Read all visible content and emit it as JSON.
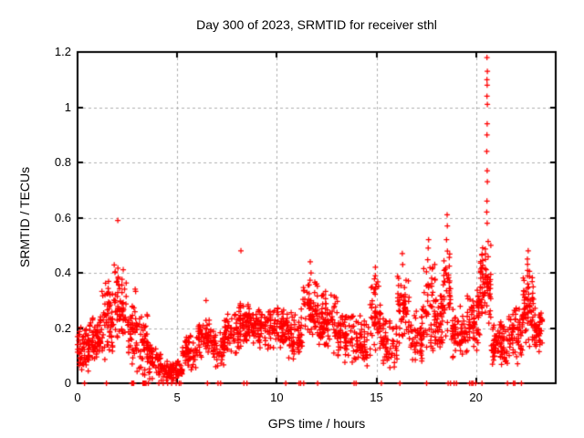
{
  "chart_data": {
    "type": "scatter",
    "title": "Day 300 of 2023, SRMTID for receiver sthl",
    "xlabel": "GPS time / hours",
    "ylabel": "SRMTID / TECUs",
    "xlim": [
      0,
      24
    ],
    "ylim": [
      0,
      1.2
    ],
    "xticks": {
      "values": [
        0,
        5,
        10,
        15,
        20
      ],
      "labels": [
        "0",
        "5",
        "10",
        "15",
        "20"
      ]
    },
    "yticks": {
      "values": [
        0,
        0.2,
        0.4,
        0.6,
        0.8,
        1.0,
        1.2
      ],
      "labels": [
        "0",
        "0.2",
        "0.4",
        "0.6",
        "0.8",
        "1",
        "1.2"
      ]
    },
    "grid": {
      "on": true,
      "color": "#b0b0b0",
      "dash": [
        3,
        3
      ],
      "x_at": [
        5,
        10,
        15,
        20
      ],
      "y_at": [
        0.2,
        0.4,
        0.6,
        0.8,
        1.0
      ]
    },
    "marker": {
      "shape": "plus",
      "color": "#ff0000",
      "size": 7,
      "stroke": 1.25
    },
    "border_color": "#000000",
    "background": "#ffffff",
    "series": [
      {
        "name": "SRMTID",
        "legend": null,
        "seed": 12345,
        "bands_format": [
          "hour_start",
          "hour_end",
          "value_low",
          "value_high",
          "n_points"
        ],
        "bands": [
          [
            0.0,
            0.6,
            0.02,
            0.22,
            60
          ],
          [
            0.6,
            1.2,
            0.04,
            0.28,
            60
          ],
          [
            1.2,
            1.8,
            0.06,
            0.4,
            65
          ],
          [
            1.8,
            2.45,
            0.08,
            0.47,
            65
          ],
          [
            2.45,
            2.95,
            0.04,
            0.36,
            45
          ],
          [
            2.95,
            3.55,
            0.01,
            0.3,
            55
          ],
          [
            3.55,
            4.2,
            0.0,
            0.16,
            60
          ],
          [
            4.2,
            5.25,
            0.0,
            0.09,
            85
          ],
          [
            5.25,
            6.05,
            0.03,
            0.19,
            65
          ],
          [
            6.05,
            6.7,
            0.08,
            0.26,
            60
          ],
          [
            6.7,
            7.35,
            0.04,
            0.2,
            50
          ],
          [
            7.35,
            8.1,
            0.08,
            0.28,
            65
          ],
          [
            8.1,
            8.8,
            0.1,
            0.32,
            70
          ],
          [
            8.8,
            9.6,
            0.1,
            0.29,
            70
          ],
          [
            9.6,
            10.6,
            0.09,
            0.31,
            85
          ],
          [
            10.6,
            11.3,
            0.05,
            0.29,
            60
          ],
          [
            11.3,
            12.05,
            0.1,
            0.42,
            65
          ],
          [
            12.05,
            13.05,
            0.09,
            0.35,
            90
          ],
          [
            13.05,
            13.85,
            0.05,
            0.3,
            65
          ],
          [
            13.85,
            14.65,
            0.04,
            0.26,
            60
          ],
          [
            14.65,
            15.25,
            0.06,
            0.4,
            55
          ],
          [
            15.25,
            16.05,
            0.03,
            0.26,
            60
          ],
          [
            16.05,
            16.65,
            0.08,
            0.45,
            55
          ],
          [
            16.65,
            17.35,
            0.04,
            0.3,
            55
          ],
          [
            17.35,
            17.95,
            0.08,
            0.5,
            55
          ],
          [
            17.95,
            18.35,
            0.08,
            0.35,
            40
          ],
          [
            18.35,
            18.75,
            0.12,
            0.55,
            40
          ],
          [
            18.75,
            19.55,
            0.06,
            0.3,
            65
          ],
          [
            19.55,
            20.2,
            0.1,
            0.36,
            65
          ],
          [
            20.2,
            20.75,
            0.16,
            0.55,
            70
          ],
          [
            20.75,
            21.65,
            0.04,
            0.24,
            85
          ],
          [
            21.65,
            22.35,
            0.05,
            0.3,
            65
          ],
          [
            22.35,
            22.9,
            0.1,
            0.46,
            65
          ],
          [
            22.9,
            23.35,
            0.08,
            0.3,
            50
          ]
        ],
        "outliers": [
          [
            2.02,
            0.59
          ],
          [
            8.2,
            0.48
          ],
          [
            11.68,
            0.44
          ],
          [
            11.72,
            0.4
          ],
          [
            12.0,
            0.36
          ],
          [
            14.95,
            0.42
          ],
          [
            14.95,
            0.39
          ],
          [
            16.3,
            0.47
          ],
          [
            16.32,
            0.43
          ],
          [
            17.62,
            0.52
          ],
          [
            17.6,
            0.49
          ],
          [
            18.55,
            0.61
          ],
          [
            18.56,
            0.57
          ],
          [
            18.52,
            0.52
          ],
          [
            20.55,
            1.18
          ],
          [
            20.57,
            1.13
          ],
          [
            20.55,
            1.1
          ],
          [
            20.56,
            1.08
          ],
          [
            20.55,
            1.04
          ],
          [
            20.57,
            1.01
          ],
          [
            20.56,
            0.94
          ],
          [
            20.55,
            0.9
          ],
          [
            20.54,
            0.84
          ],
          [
            20.56,
            0.77
          ],
          [
            20.57,
            0.73
          ],
          [
            20.55,
            0.66
          ],
          [
            20.54,
            0.62
          ],
          [
            20.56,
            0.58
          ],
          [
            22.62,
            0.48
          ],
          [
            22.58,
            0.45
          ],
          [
            6.45,
            0.3
          ]
        ],
        "zeros": [
          0.35,
          1.45,
          2.72,
          2.78,
          2.82,
          3.28,
          3.33,
          3.38,
          3.44,
          3.55,
          4.08,
          4.3,
          4.52,
          4.72,
          4.95,
          5.1,
          5.18,
          6.52,
          7.05,
          7.18,
          8.35,
          8.5,
          10.45,
          11.12,
          11.2,
          11.35,
          12.05,
          13.88,
          13.98,
          15.25,
          16.18,
          17.52,
          18.6,
          18.72,
          18.9,
          19.02,
          19.68,
          19.78,
          19.85,
          19.98,
          20.3,
          21.58,
          21.88,
          21.95,
          22.28
        ]
      }
    ]
  }
}
